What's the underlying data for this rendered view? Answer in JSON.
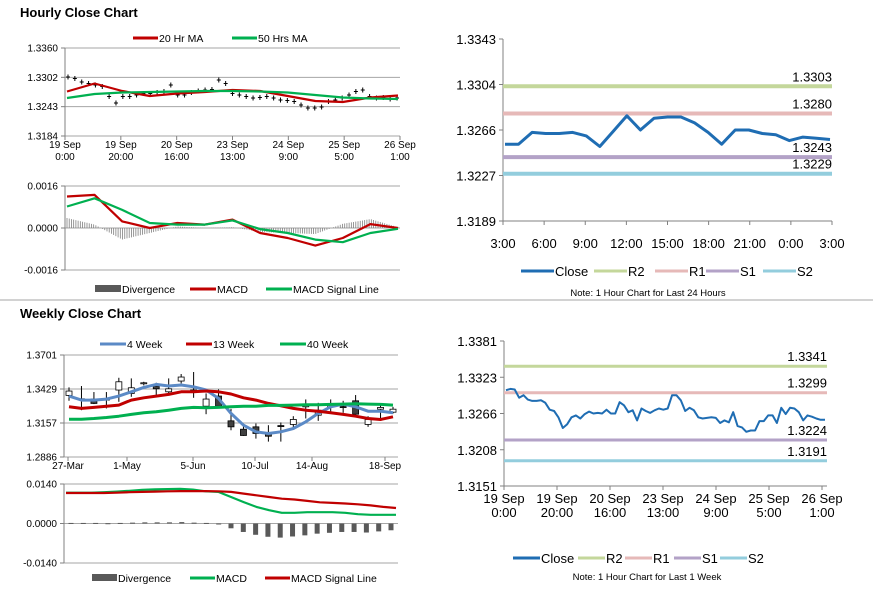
{
  "hourly_title": "Hourly Close Chart",
  "weekly_title": "Weekly Close Chart",
  "colors": {
    "red": "#C00000",
    "green": "#00B050",
    "blue": "#5B8AC6",
    "close": "#1F6DB3",
    "R2": "#C4D79B",
    "R1": "#E6B9B8",
    "S1": "#B3A2C7",
    "S2": "#93CDDD",
    "divergence": "#595959"
  },
  "chart_data": [
    {
      "id": "hourly_price",
      "type": "candlestick-line",
      "ylim": [
        1.3184,
        1.336
      ],
      "yticks": [
        "1.3360",
        "1.3302",
        "1.3243",
        "1.3184"
      ],
      "grid": true,
      "xticks": [
        [
          "19 Sep",
          "0:00"
        ],
        [
          "19 Sep",
          "20:00"
        ],
        [
          "20 Sep",
          "16:00"
        ],
        [
          "23 Sep",
          "13:00"
        ],
        [
          "24 Sep",
          "9:00"
        ],
        [
          "25 Sep",
          "5:00"
        ],
        [
          "26 Sep",
          "1:00"
        ]
      ],
      "legend": [
        {
          "name": "20 Hr MA",
          "color": "red"
        },
        {
          "name": "50 Hrs MA",
          "color": "green"
        }
      ],
      "legend_position": "top",
      "bars_close": [
        1.3302,
        1.3299,
        1.3292,
        1.3289,
        1.3286,
        1.3283,
        1.3263,
        1.325,
        1.3263,
        1.3263,
        1.3266,
        1.3269,
        1.3269,
        1.3271,
        1.3273,
        1.3286,
        1.3266,
        1.3266,
        1.3271,
        1.3274,
        1.3276,
        1.3277,
        1.3296,
        1.3289,
        1.3269,
        1.3266,
        1.3263,
        1.326,
        1.3261,
        1.3263,
        1.326,
        1.3256,
        1.3255,
        1.3253,
        1.3246,
        1.324,
        1.324,
        1.3242,
        1.3253,
        1.3256,
        1.326,
        1.3266,
        1.3273,
        1.3276,
        1.3263,
        1.326,
        1.3261,
        1.3258,
        1.326
      ],
      "series": [
        {
          "name": "20 Hr MA",
          "color": "red",
          "values": [
            1.3273,
            1.3289,
            1.3274,
            1.3264,
            1.3269,
            1.3272,
            1.3276,
            1.3274,
            1.3264,
            1.3254,
            1.3252,
            1.3261,
            1.3265
          ]
        },
        {
          "name": "50 Hrs MA",
          "color": "green",
          "values": [
            1.326,
            1.3268,
            1.3271,
            1.3272,
            1.3273,
            1.3274,
            1.3274,
            1.3273,
            1.3271,
            1.3266,
            1.3261,
            1.3259,
            1.3258
          ]
        }
      ]
    },
    {
      "id": "hourly_macd",
      "type": "line-bar",
      "ylim": [
        -0.0016,
        0.0016
      ],
      "yticks": [
        "0.0016",
        "0.0000",
        "-0.0016"
      ],
      "grid": true,
      "legend": [
        {
          "name": "Divergence",
          "color": "divergence",
          "kind": "bar"
        },
        {
          "name": "MACD",
          "color": "red"
        },
        {
          "name": "MACD Signal Line",
          "color": "green"
        }
      ],
      "legend_position": "bottom",
      "divergence": [
        0.00038,
        0.00013,
        -0.00044,
        -0.00019,
        6e-05,
        0.0,
        3e-05,
        -0.00015,
        -0.00019,
        -0.00023,
        0.00016,
        0.00034,
        3e-05
      ],
      "series": [
        {
          "name": "MACD",
          "color": "red",
          "values": [
            0.0012,
            0.00126,
            0.00025,
            0.0,
            0.00019,
            0.00013,
            0.00032,
            -0.00019,
            -0.00038,
            -0.00067,
            -0.00038,
            0.00015,
            0.0
          ]
        },
        {
          "name": "MACD Signal Line",
          "color": "green",
          "values": [
            0.00082,
            0.00113,
            0.00069,
            0.00019,
            0.00013,
            0.00013,
            0.00029,
            -4e-05,
            -0.00019,
            -0.00044,
            -0.00054,
            -0.00019,
            -3e-05
          ]
        }
      ]
    },
    {
      "id": "daily_levels",
      "type": "line",
      "ylim": [
        1.3189,
        1.3343
      ],
      "yticks": [
        "1.3343",
        "1.3304",
        "1.3266",
        "1.3227",
        "1.3189"
      ],
      "grid": false,
      "xticks": [
        "3:00",
        "6:00",
        "9:00",
        "12:00",
        "15:00",
        "18:00",
        "21:00",
        "0:00",
        "3:00"
      ],
      "legend": [
        {
          "name": "Close",
          "color": "close"
        },
        {
          "name": "R2",
          "color": "R2"
        },
        {
          "name": "R1",
          "color": "R1"
        },
        {
          "name": "S1",
          "color": "S1"
        },
        {
          "name": "S2",
          "color": "S2"
        }
      ],
      "legend_position": "bottom",
      "note": "Note: 1 Hour Chart for Last 24 Hours",
      "levels": [
        {
          "name": "R2",
          "value": 1.3303,
          "label": "1.3303"
        },
        {
          "name": "R1",
          "value": 1.328,
          "label": "1.3280"
        },
        {
          "name": "S1",
          "value": 1.3243,
          "label": "1.3243"
        },
        {
          "name": "S2",
          "value": 1.3229,
          "label": "1.3229"
        }
      ],
      "series": [
        {
          "name": "Close",
          "color": "close",
          "values": [
            1.3254,
            1.3254,
            1.3264,
            1.3263,
            1.3263,
            1.3264,
            1.3261,
            1.3252,
            1.3265,
            1.3278,
            1.3266,
            1.3276,
            1.3277,
            1.3277,
            1.3272,
            1.3264,
            1.3254,
            1.3266,
            1.3266,
            1.3263,
            1.3262,
            1.3257,
            1.326,
            1.3259,
            1.3258
          ]
        }
      ]
    },
    {
      "id": "weekly_levels",
      "type": "line",
      "ylim": [
        1.3151,
        1.3381
      ],
      "yticks": [
        "1.3381",
        "1.3323",
        "1.3266",
        "1.3208",
        "1.3151"
      ],
      "grid": false,
      "xticks": [
        [
          "19 Sep",
          "0:00"
        ],
        [
          "19 Sep",
          "20:00"
        ],
        [
          "20 Sep",
          "16:00"
        ],
        [
          "23 Sep",
          "13:00"
        ],
        [
          "24 Sep",
          "9:00"
        ],
        [
          "25 Sep",
          "5:00"
        ],
        [
          "26 Sep",
          "1:00"
        ]
      ],
      "legend": [
        {
          "name": "Close",
          "color": "close"
        },
        {
          "name": "R2",
          "color": "R2"
        },
        {
          "name": "R1",
          "color": "R1"
        },
        {
          "name": "S1",
          "color": "S1"
        },
        {
          "name": "S2",
          "color": "S2"
        }
      ],
      "legend_position": "bottom",
      "note": "Note: 1 Hour Chart for  Last 1 Week",
      "levels": [
        {
          "name": "R2",
          "value": 1.3341,
          "label": "1.3341"
        },
        {
          "name": "R1",
          "value": 1.3299,
          "label": "1.3299"
        },
        {
          "name": "S1",
          "value": 1.3224,
          "label": "1.3224"
        },
        {
          "name": "S2",
          "value": 1.3191,
          "label": "1.3191"
        }
      ],
      "series": [
        {
          "name": "Close",
          "color": "close",
          "values": [
            1.3303,
            1.3305,
            1.3304,
            1.3291,
            1.3295,
            1.3288,
            1.3286,
            1.3286,
            1.3287,
            1.3283,
            1.3272,
            1.327,
            1.326,
            1.3243,
            1.3249,
            1.326,
            1.3263,
            1.3258,
            1.3265,
            1.3269,
            1.3266,
            1.3267,
            1.3266,
            1.3272,
            1.3266,
            1.3266,
            1.3284,
            1.3279,
            1.3268,
            1.3271,
            1.3255,
            1.3274,
            1.327,
            1.3267,
            1.3271,
            1.3274,
            1.3272,
            1.3274,
            1.3295,
            1.3295,
            1.3287,
            1.327,
            1.3275,
            1.3271,
            1.326,
            1.3258,
            1.3259,
            1.326,
            1.3259,
            1.3251,
            1.3255,
            1.3252,
            1.3268,
            1.3246,
            1.3244,
            1.3237,
            1.3239,
            1.3239,
            1.3254,
            1.3254,
            1.3263,
            1.3263,
            1.3251,
            1.3275,
            1.3265,
            1.3275,
            1.3274,
            1.3268,
            1.3255,
            1.3263,
            1.3261,
            1.3258,
            1.3256,
            1.3256
          ]
        }
      ]
    },
    {
      "id": "weekly_price",
      "type": "candlestick-line",
      "ylim": [
        1.2886,
        1.3701
      ],
      "yticks": [
        "1.3701",
        "1.3429",
        "1.3157",
        "1.2886"
      ],
      "grid": true,
      "xticks": [
        "27-Mar",
        "1-May",
        "5-Jun",
        "10-Jul",
        "14-Aug",
        "18-Sep"
      ],
      "legend": [
        {
          "name": "4 Week",
          "color": "blue"
        },
        {
          "name": "13 Week",
          "color": "red"
        },
        {
          "name": "40 Week",
          "color": "green"
        }
      ],
      "legend_position": "top",
      "ohlc": [
        [
          1.3378,
          1.3442,
          1.3335,
          1.3413
        ],
        [
          1.3351,
          1.3453,
          1.326,
          1.3343
        ],
        [
          1.3349,
          1.3405,
          1.3309,
          1.3314
        ],
        [
          1.3349,
          1.3405,
          1.3274,
          1.3346
        ],
        [
          1.3421,
          1.3519,
          1.3327,
          1.3487
        ],
        [
          1.3394,
          1.3514,
          1.3367,
          1.3439
        ],
        [
          1.3479,
          1.3487,
          1.3458,
          1.3479
        ],
        [
          1.3453,
          1.3479,
          1.3381,
          1.3431
        ],
        [
          1.3407,
          1.3514,
          1.3381,
          1.3431
        ],
        [
          1.3493,
          1.3549,
          1.3474,
          1.3525
        ],
        [
          1.341,
          1.3565,
          1.3359,
          1.3421
        ],
        [
          1.3292,
          1.3394,
          1.3228,
          1.3349
        ],
        [
          1.3373,
          1.3426,
          1.3274,
          1.3292
        ],
        [
          1.3175,
          1.3271,
          1.31,
          1.3127
        ],
        [
          1.3108,
          1.3135,
          1.3055,
          1.3058
        ],
        [
          1.3127,
          1.3154,
          1.3033,
          1.3074
        ],
        [
          1.3074,
          1.314,
          1.3009,
          1.3052
        ],
        [
          1.3137,
          1.3162,
          1.3009,
          1.3133
        ],
        [
          1.3146,
          1.3212,
          1.3122,
          1.3186
        ],
        [
          1.3287,
          1.3346,
          1.3194,
          1.3298
        ],
        [
          1.322,
          1.3319,
          1.3175,
          1.326
        ],
        [
          1.3287,
          1.3346,
          1.3247,
          1.3298
        ],
        [
          1.3289,
          1.3335,
          1.3239,
          1.3285
        ],
        [
          1.3335,
          1.3381,
          1.3223,
          1.3228
        ],
        [
          1.3146,
          1.3212,
          1.3127,
          1.3186
        ],
        [
          1.3268,
          1.3301,
          1.318,
          1.3282
        ],
        [
          1.3244,
          1.3287,
          1.3234,
          1.3268
        ]
      ],
      "series": [
        {
          "name": "4 Week",
          "color": "blue",
          "values": [
            1.3373,
            1.3341,
            1.3341,
            1.3349,
            1.3373,
            1.3407,
            1.3442,
            1.3466,
            1.3453,
            1.3461,
            1.3447,
            1.3421,
            1.3354,
            1.3234,
            1.314,
            1.3087,
            1.3074,
            1.3087,
            1.3114,
            1.3167,
            1.3234,
            1.3287,
            1.3309,
            1.3287,
            1.3252,
            1.3252,
            1.3239
          ]
        },
        {
          "name": "13 Week",
          "color": "red",
          "values": [
            1.3287,
            1.3274,
            1.3282,
            1.3292,
            1.3301,
            1.3341,
            1.3359,
            1.3373,
            1.3386,
            1.3407,
            1.3407,
            1.3413,
            1.3407,
            1.3389,
            1.3359,
            1.3341,
            1.3314,
            1.3295,
            1.3274,
            1.326,
            1.3252,
            1.3239,
            1.3226,
            1.3212,
            1.3194,
            1.3186,
            1.3207
          ]
        },
        {
          "name": "40 Week",
          "color": "green",
          "values": [
            1.3188,
            1.3188,
            1.3194,
            1.3202,
            1.3212,
            1.3226,
            1.3239,
            1.3247,
            1.326,
            1.3274,
            1.3282,
            1.3279,
            1.3282,
            1.3287,
            1.3292,
            1.3292,
            1.3298,
            1.3298,
            1.3301,
            1.3303,
            1.3303,
            1.3306,
            1.3309,
            1.3312,
            1.3309,
            1.3306,
            1.3301
          ]
        }
      ]
    },
    {
      "id": "weekly_macd",
      "type": "line-bar",
      "ylim": [
        -0.014,
        0.014
      ],
      "yticks": [
        "0.0140",
        "0.0000",
        "-0.0140"
      ],
      "grid": true,
      "legend": [
        {
          "name": "Divergence",
          "color": "divergence",
          "kind": "bar"
        },
        {
          "name": "MACD",
          "color": "green"
        },
        {
          "name": "MACD Signal Line",
          "color": "red"
        }
      ],
      "legend_position": "bottom",
      "divergence": [
        0.0002,
        0.0002,
        0.0002,
        0.0001,
        0.0002,
        0.0003,
        0.0004,
        0.0004,
        0.0004,
        0.0005,
        0.0003,
        0.0002,
        -0.0003,
        -0.0017,
        -0.003,
        -0.004,
        -0.0047,
        -0.005,
        -0.0046,
        -0.0042,
        -0.0036,
        -0.0033,
        -0.003,
        -0.003,
        -0.0032,
        -0.0028,
        -0.0024
      ],
      "series": [
        {
          "name": "MACD",
          "color": "green",
          "values": [
            0.0109,
            0.0109,
            0.0109,
            0.0111,
            0.0113,
            0.0116,
            0.0119,
            0.0121,
            0.0122,
            0.0123,
            0.012,
            0.0114,
            0.0112,
            0.0094,
            0.0076,
            0.0059,
            0.0047,
            0.0038,
            0.0038,
            0.004,
            0.004,
            0.004,
            0.0038,
            0.0033,
            0.0031,
            0.0031,
            0.0031
          ]
        },
        {
          "name": "MACD Signal Line",
          "color": "red",
          "values": [
            0.0108,
            0.0108,
            0.0108,
            0.0108,
            0.0109,
            0.0111,
            0.0112,
            0.0113,
            0.0114,
            0.0115,
            0.0115,
            0.0115,
            0.0114,
            0.0112,
            0.0106,
            0.01,
            0.0094,
            0.0088,
            0.0085,
            0.008,
            0.0075,
            0.0073,
            0.0071,
            0.0068,
            0.0064,
            0.0059,
            0.0055
          ]
        }
      ]
    }
  ]
}
